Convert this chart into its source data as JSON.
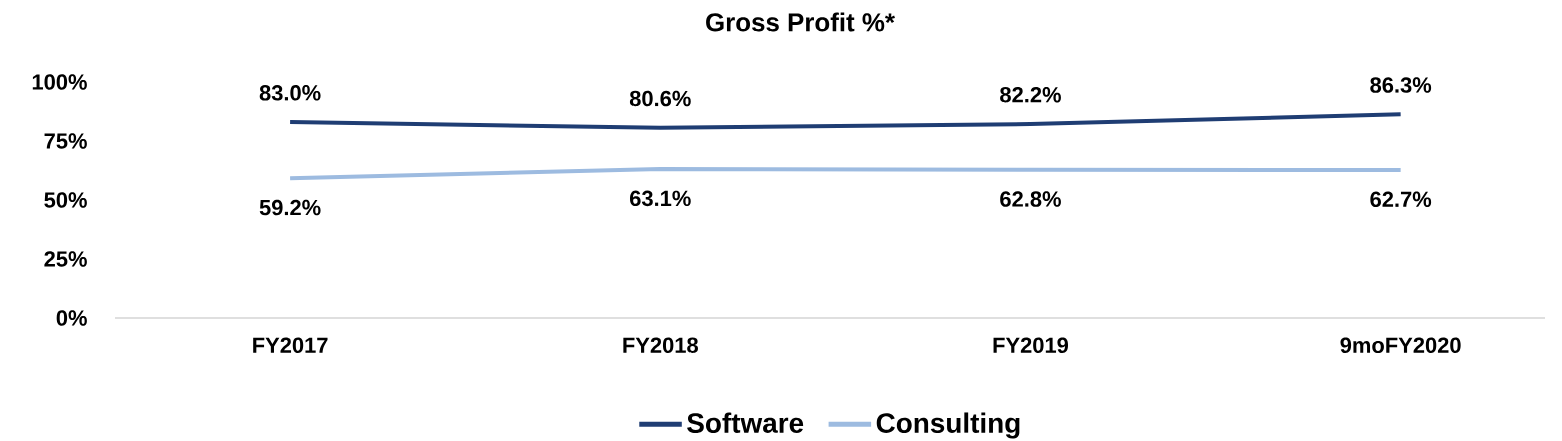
{
  "chart_data": {
    "type": "line",
    "title": "Gross Profit %*",
    "categories": [
      "FY2017",
      "FY2018",
      "FY2019",
      "9moFY2020"
    ],
    "series": [
      {
        "name": "Software",
        "color": "#1f3d73",
        "values": [
          83.0,
          80.6,
          82.2,
          86.3
        ],
        "value_labels": [
          "83.0%",
          "80.6%",
          "82.2%",
          "86.3%"
        ]
      },
      {
        "name": "Consulting",
        "color": "#9dbbe0",
        "values": [
          59.2,
          63.1,
          62.8,
          62.7
        ],
        "value_labels": [
          "59.2%",
          "63.1%",
          "62.8%",
          "62.7%"
        ]
      }
    ],
    "ylim": [
      0,
      100
    ],
    "yticks": [
      {
        "value": 0,
        "label": "0%"
      },
      {
        "value": 25,
        "label": "25%"
      },
      {
        "value": 50,
        "label": "50%"
      },
      {
        "value": 75,
        "label": "75%"
      },
      {
        "value": 100,
        "label": "100%"
      }
    ],
    "grid": false,
    "legend": "bottom",
    "marker": "none",
    "line_style": "solid"
  }
}
